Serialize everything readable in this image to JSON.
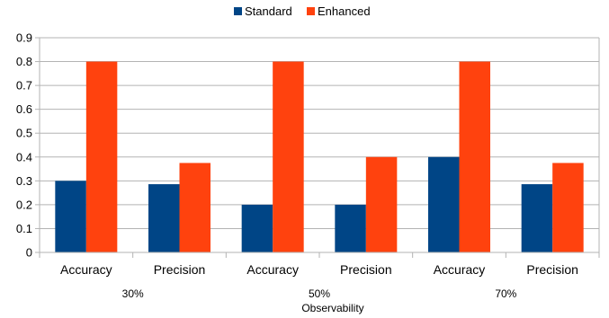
{
  "chart_data": {
    "type": "bar",
    "title": "",
    "xlabel": "Observability",
    "ylabel": "",
    "ylim": [
      0,
      0.9
    ],
    "yticks": [
      0,
      0.1,
      0.2,
      0.3,
      0.4,
      0.5,
      0.6,
      0.7,
      0.8,
      0.9
    ],
    "grid": true,
    "legend_position": "top",
    "groups": [
      "30%",
      "50%",
      "70%"
    ],
    "categories": [
      "Accuracy",
      "Precision",
      "Accuracy",
      "Precision",
      "Accuracy",
      "Precision"
    ],
    "series": [
      {
        "name": "Standard",
        "color": "#004586",
        "values": [
          0.3,
          0.286,
          0.2,
          0.2,
          0.4,
          0.286
        ]
      },
      {
        "name": "Enhanced",
        "color": "#ff420e",
        "values": [
          0.8,
          0.375,
          0.8,
          0.4,
          0.8,
          0.375
        ]
      }
    ]
  }
}
